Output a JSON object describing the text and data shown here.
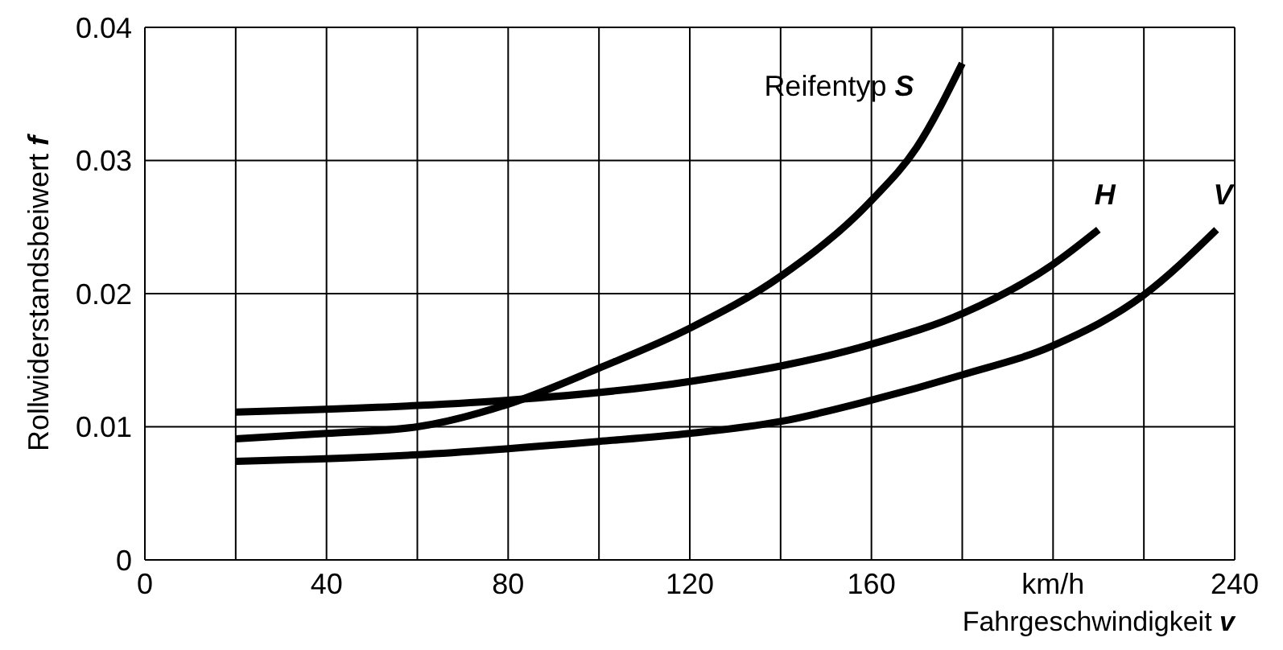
{
  "chart_data": {
    "type": "line",
    "xlabel": "Fahrgeschwindigkeit v",
    "ylabel": "Rollwiderstandsbeiwert f",
    "xlim": [
      0,
      240
    ],
    "xticks": [
      0,
      {
        "value": 20,
        "label": null
      },
      40,
      {
        "value": 60,
        "label": null
      },
      80,
      {
        "value": 100,
        "label": null
      },
      120,
      {
        "value": 140,
        "label": null
      },
      160,
      {
        "value": 180,
        "label": null
      },
      {
        "value": 200,
        "label": "km/h"
      },
      {
        "value": 220,
        "label": null
      },
      240
    ],
    "ylim": [
      0,
      0.04
    ],
    "yticks": [
      0,
      0.01,
      0.02,
      0.03,
      0.04
    ],
    "grid": true,
    "legend": false,
    "marker": "none",
    "line_style": "solid",
    "series": [
      {
        "name": "Reifentyp S",
        "color": "#000000",
        "x": [
          20,
          40,
          60,
          80,
          100,
          120,
          140,
          160,
          170,
          180
        ],
        "values": [
          0.0091,
          0.0095,
          0.01,
          0.0117,
          0.0144,
          0.0174,
          0.0213,
          0.027,
          0.031,
          0.0373
        ]
      },
      {
        "name": "H",
        "color": "#000000",
        "x": [
          20,
          60,
          80,
          120,
          160,
          180,
          200,
          210
        ],
        "values": [
          0.0111,
          0.0116,
          0.012,
          0.0134,
          0.0162,
          0.0185,
          0.0222,
          0.0248
        ]
      },
      {
        "name": "V",
        "color": "#000000",
        "x": [
          20,
          60,
          100,
          120,
          140,
          160,
          180,
          200,
          220,
          236
        ],
        "values": [
          0.0074,
          0.0079,
          0.0089,
          0.0095,
          0.0104,
          0.012,
          0.0139,
          0.0161,
          0.0199,
          0.0248
        ]
      }
    ]
  }
}
